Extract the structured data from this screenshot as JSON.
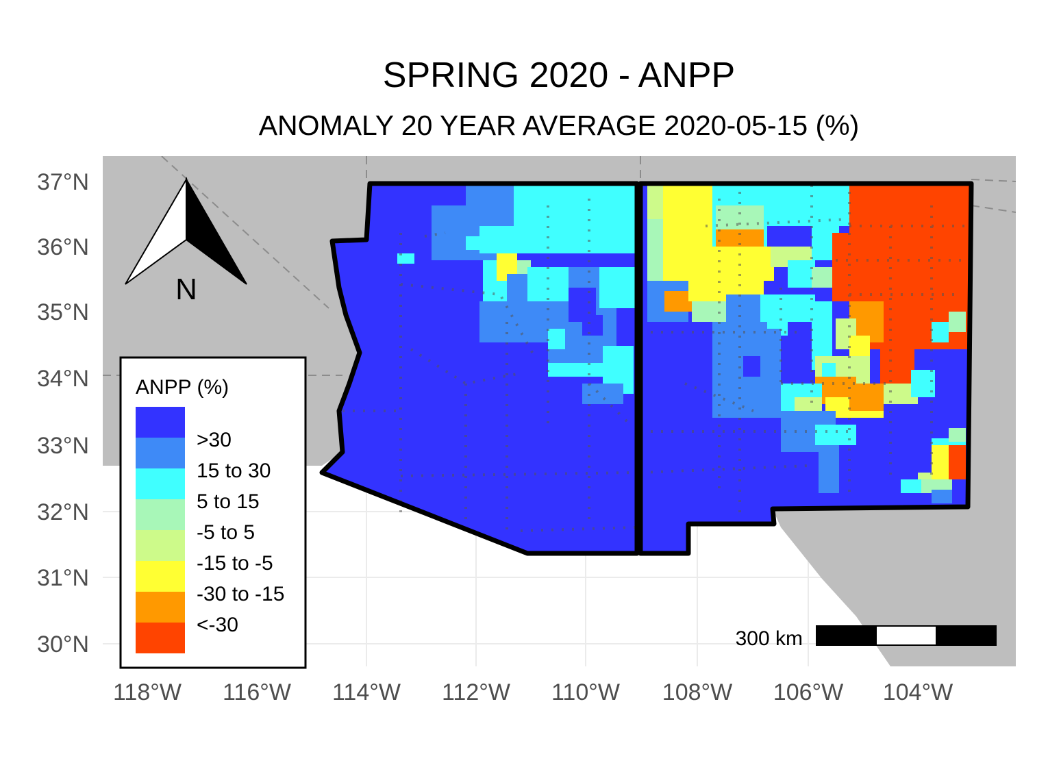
{
  "title": "SPRING 2020 - ANPP",
  "subtitle": "ANOMALY 20 YEAR AVERAGE 2020-05-15 (%)",
  "axes": {
    "x_ticks": [
      "118°W",
      "116°W",
      "114°W",
      "112°W",
      "110°W",
      "108°W",
      "106°W",
      "104°W"
    ],
    "y_ticks": [
      "37°N",
      "36°N",
      "35°N",
      "34°N",
      "33°N",
      "32°N",
      "31°N",
      "30°N"
    ]
  },
  "compass": {
    "label": "N"
  },
  "scale_bar": {
    "label": "300 km"
  },
  "legend": {
    "title": "ANPP (%)",
    "items": [
      {
        "label": ">30",
        "color": "#3333ff"
      },
      {
        "label": "15 to 30",
        "color": "#3e8af7"
      },
      {
        "label": "5 to 15",
        "color": "#40ffff"
      },
      {
        "label": "-5 to 5",
        "color": "#a8f7b8"
      },
      {
        "label": "-15 to -5",
        "color": "#cdfa8a"
      },
      {
        "label": "-30 to -15",
        "color": "#ffff33"
      },
      {
        "label": "<-30",
        "color": "#ff9900"
      },
      {
        "label": "",
        "color": "#ff4400"
      }
    ]
  },
  "colors": {
    "land": "#bebebe",
    "grid": "#ebebeb",
    "background": "#ffffff",
    "border": "#000000"
  }
}
